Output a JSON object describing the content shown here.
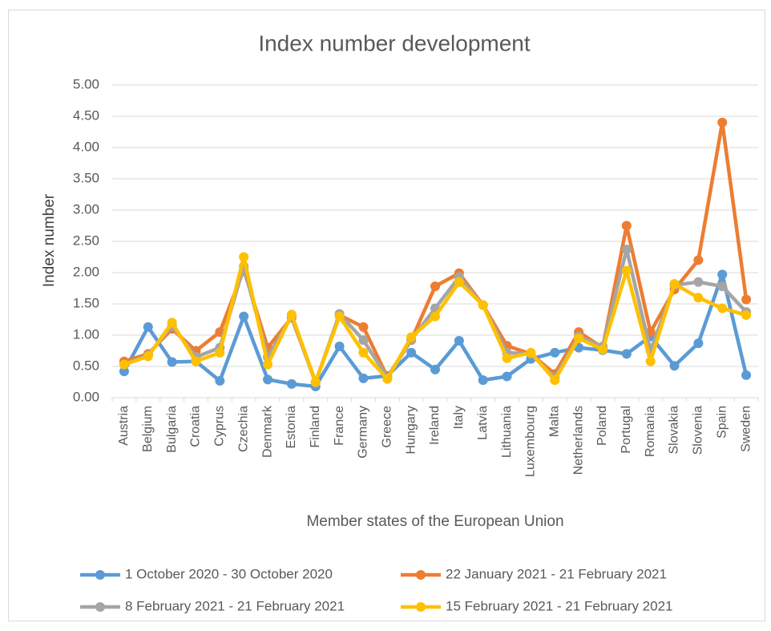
{
  "chart_data": {
    "type": "line",
    "title": "Index number development",
    "y_label": "Index number",
    "x_label": "Member states of the European Union",
    "categories": [
      "Austria",
      "Belgium",
      "Bulgaria",
      "Croatia",
      "Cyprus",
      "Czechia",
      "Denmark",
      "Estonia",
      "Finland",
      "France",
      "Germany",
      "Greece",
      "Hungary",
      "Ireland",
      "Italy",
      "Latvia",
      "Lithuania",
      "Luxembourg",
      "Malta",
      "Netherlands",
      "Poland",
      "Portugal",
      "Romania",
      "Slovakia",
      "Slovenia",
      "Spain",
      "Sweden"
    ],
    "series": [
      {
        "name": "1 October 2020 - 30 October 2020",
        "color": "#5b9bd5",
        "values": [
          0.42,
          1.13,
          0.57,
          0.58,
          0.27,
          1.3,
          0.29,
          0.22,
          0.18,
          0.82,
          0.31,
          0.35,
          0.72,
          0.45,
          0.91,
          0.28,
          0.34,
          0.62,
          0.72,
          0.8,
          0.76,
          0.7,
          0.98,
          0.51,
          0.87,
          1.97,
          0.36
        ]
      },
      {
        "name": "22 January 2021 - 21 February 2021",
        "color": "#ed7d31",
        "values": [
          0.58,
          0.7,
          1.1,
          0.75,
          1.05,
          2.05,
          0.8,
          1.28,
          0.25,
          1.32,
          1.13,
          0.33,
          0.92,
          1.78,
          1.99,
          1.48,
          0.83,
          0.7,
          0.38,
          1.05,
          0.8,
          2.75,
          1.05,
          1.73,
          2.2,
          4.4,
          1.57
        ]
      },
      {
        "name": "8 February 2021 - 21 February 2021",
        "color": "#a5a5a5",
        "values": [
          0.53,
          0.68,
          1.15,
          0.65,
          0.8,
          2.1,
          0.65,
          1.3,
          0.24,
          1.34,
          0.92,
          0.32,
          0.93,
          1.43,
          1.93,
          1.48,
          0.72,
          0.7,
          0.32,
          0.98,
          0.82,
          2.37,
          0.75,
          1.8,
          1.85,
          1.78,
          1.37
        ]
      },
      {
        "name": "15 February 2021 - 21 February 2021",
        "color": "#ffc000",
        "values": [
          0.53,
          0.66,
          1.2,
          0.58,
          0.72,
          2.25,
          0.53,
          1.33,
          0.25,
          1.3,
          0.72,
          0.3,
          0.97,
          1.3,
          1.85,
          1.48,
          0.63,
          0.72,
          0.28,
          0.95,
          0.77,
          2.03,
          0.58,
          1.82,
          1.6,
          1.43,
          1.32
        ]
      }
    ],
    "ylim": [
      0,
      5
    ],
    "yticks": [
      {
        "value": 0,
        "label": "0.00"
      },
      {
        "value": 0.5,
        "label": "0.50"
      },
      {
        "value": 1,
        "label": "1.00"
      },
      {
        "value": 1.5,
        "label": "1.50"
      },
      {
        "value": 2,
        "label": "2.00"
      },
      {
        "value": 2.5,
        "label": "2.50"
      },
      {
        "value": 3,
        "label": "3.00"
      },
      {
        "value": 3.5,
        "label": "3.50"
      },
      {
        "value": 4,
        "label": "4.00"
      },
      {
        "value": 4.5,
        "label": "4.50"
      },
      {
        "value": 5,
        "label": "5.00"
      }
    ],
    "grid": true,
    "legend": "bottom"
  }
}
